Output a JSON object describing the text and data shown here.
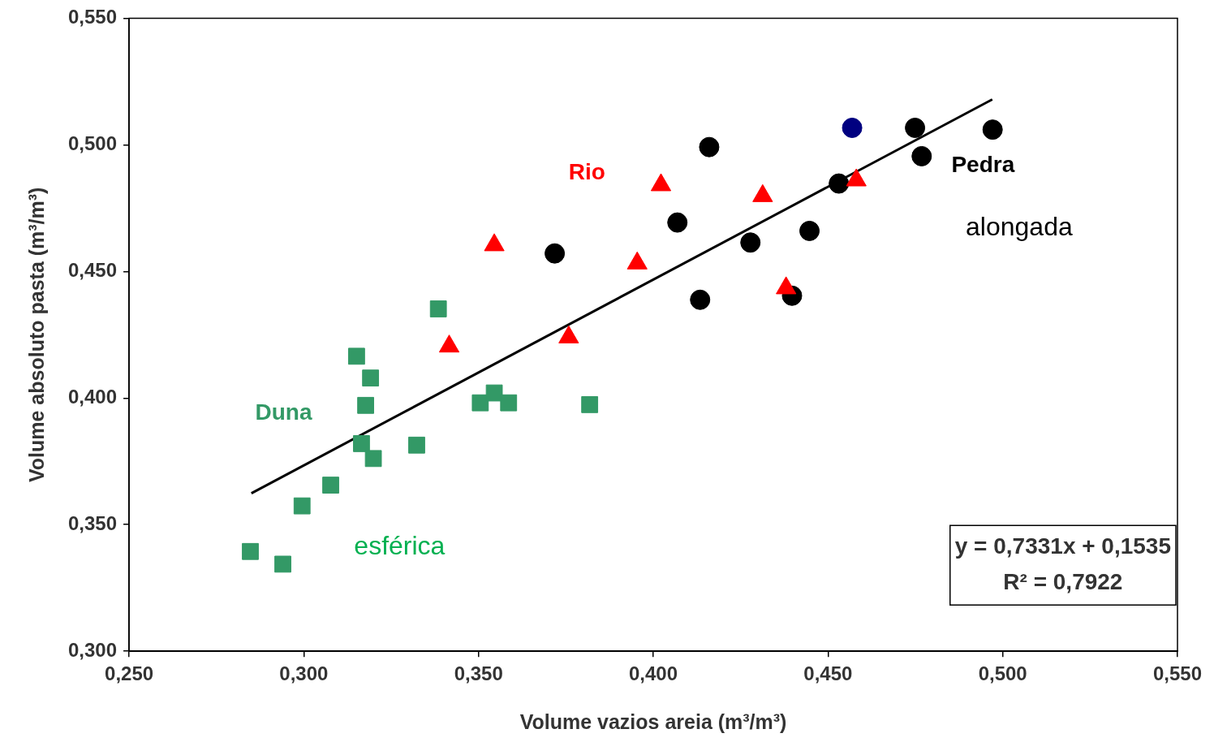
{
  "chart_data": {
    "type": "scatter",
    "xlabel": "Volume vazios areia (m³/m³)",
    "ylabel": "Volume absoluto pasta (m³/m³)",
    "xlim": [
      0.25,
      0.55
    ],
    "ylim": [
      0.3,
      0.55
    ],
    "xticks": [
      {
        "value": 0.25,
        "label": "0,250"
      },
      {
        "value": 0.3,
        "label": "0,300"
      },
      {
        "value": 0.35,
        "label": "0,350"
      },
      {
        "value": 0.4,
        "label": "0,400"
      },
      {
        "value": 0.45,
        "label": "0,450"
      },
      {
        "value": 0.5,
        "label": "0,500"
      },
      {
        "value": 0.55,
        "label": "0,550"
      }
    ],
    "yticks": [
      {
        "value": 0.3,
        "label": "0,300"
      },
      {
        "value": 0.35,
        "label": "0,350"
      },
      {
        "value": 0.4,
        "label": "0,400"
      },
      {
        "value": 0.45,
        "label": "0,450"
      },
      {
        "value": 0.5,
        "label": "0,500"
      },
      {
        "value": 0.55,
        "label": "0,550"
      }
    ],
    "grid": false,
    "legend": false,
    "series": [
      {
        "name": "Duna",
        "color": "#339966",
        "marker": "square",
        "x": [
          0.2847,
          0.294,
          0.2995,
          0.3077,
          0.3151,
          0.3191,
          0.3177,
          0.3165,
          0.3199,
          0.3323,
          0.3385,
          0.3505,
          0.3545,
          0.3586,
          0.3818
        ],
        "values": [
          0.3394,
          0.3344,
          0.3574,
          0.3656,
          0.4165,
          0.4079,
          0.3971,
          0.382,
          0.3761,
          0.3814,
          0.4352,
          0.3981,
          0.402,
          0.3981,
          0.3974
        ]
      },
      {
        "name": "Rio",
        "color": "#ff0000",
        "marker": "triangle",
        "x": [
          0.3545,
          0.3416,
          0.3758,
          0.3954,
          0.4022,
          0.4313,
          0.438,
          0.4581
        ],
        "values": [
          0.4604,
          0.4204,
          0.424,
          0.4532,
          0.4841,
          0.4798,
          0.4434,
          0.486
        ]
      },
      {
        "name": "Pedra",
        "color": "#000000",
        "marker": "circle",
        "x": [
          0.3718,
          0.4069,
          0.416,
          0.4134,
          0.4278,
          0.4397,
          0.4447,
          0.4531,
          0.4749,
          0.4768,
          0.4971
        ],
        "values": [
          0.4571,
          0.4693,
          0.4991,
          0.4388,
          0.4614,
          0.4404,
          0.466,
          0.4847,
          0.5067,
          0.4955,
          0.506
        ]
      },
      {
        "color": "#000080",
        "marker": "circle",
        "x": [
          0.4569
        ],
        "values": [
          0.5067
        ]
      },
      {
        "type": "line",
        "color": "#000000",
        "marker": "none",
        "line_style": "solid",
        "x": [
          0.285,
          0.497
        ],
        "values": [
          0.3624,
          0.5179
        ]
      }
    ],
    "annotations": [
      "esférica",
      "alongada",
      "y = 0,7331x + 0,1535",
      "R² = 0,7922"
    ]
  }
}
